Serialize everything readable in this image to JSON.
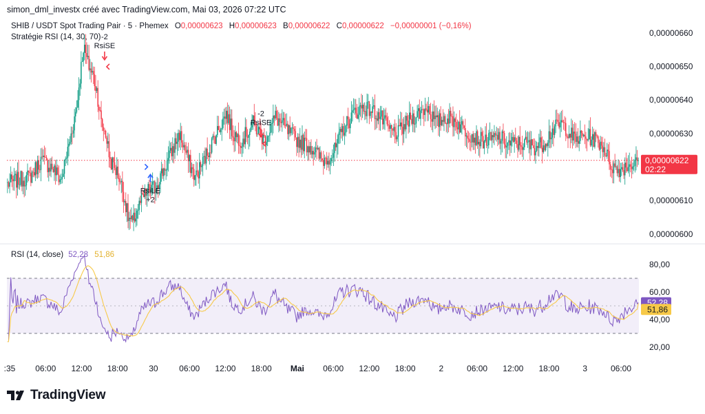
{
  "header": "simon_dml_investx créé avec TradingView.com, Mai 03, 2026 07:22 UTC",
  "legend": {
    "symbol": "SHIB / USDT Spot Trading Pair · 5 · Phemex",
    "open_label": "O",
    "open": "0,00000623",
    "high_label": "H",
    "high": "0,00000623",
    "low_label": "B",
    "low": "0,00000622",
    "close_label": "C",
    "close": "0,00000622",
    "change": "−0,00000001 (−0,16%)"
  },
  "strategy_label": "Stratégie RSI (14, 30, 70)",
  "rsi_legend": {
    "label": "RSI (14, close)",
    "value1": "52,28",
    "value2": "51,86"
  },
  "logo_text": "TradingView",
  "colors": {
    "up": "#089981",
    "down": "#f23645",
    "rsi": "#7e57c2",
    "rsi_ma": "#f7c948",
    "badge_price": "#f23645",
    "badge_rsi": "#7e57c2",
    "badge_rsi_ma": "#f7c948"
  },
  "chart_data": [
    {
      "type": "candlestick",
      "price_axis": [
        "0,00000660",
        "0,00000650",
        "0,00000640",
        "0,00000630",
        "0,00000620",
        "0,00000610",
        "0,00000600"
      ],
      "ylim": [
        5.975e-06,
        6.645e-06
      ],
      "last_price_label": "0,00000622",
      "countdown": "02:22",
      "last_price": 6.22e-06,
      "x_labels": [
        ":35",
        "06:00",
        "12:00",
        "18:00",
        "30",
        "06:00",
        "12:00",
        "18:00",
        "Mai",
        "06:00",
        "12:00",
        "18:00",
        "2",
        "06:00",
        "12:00",
        "18:00",
        "3",
        "06:00"
      ],
      "x_label_bold": "Mai",
      "close_path": [
        [
          0,
          6.15
        ],
        [
          8,
          6.16
        ],
        [
          20,
          6.17
        ],
        [
          30,
          6.22
        ],
        [
          40,
          6.2
        ],
        [
          48,
          6.16
        ],
        [
          56,
          6.28
        ],
        [
          62,
          6.38
        ],
        [
          68,
          6.56
        ],
        [
          72,
          6.51
        ],
        [
          76,
          6.48
        ],
        [
          80,
          6.43
        ],
        [
          84,
          6.33
        ],
        [
          88,
          6.3
        ],
        [
          92,
          6.22
        ],
        [
          96,
          6.2
        ],
        [
          100,
          6.17
        ],
        [
          104,
          6.12
        ],
        [
          108,
          6.05
        ],
        [
          112,
          6.03
        ],
        [
          116,
          6.07
        ],
        [
          120,
          6.1
        ],
        [
          126,
          6.13
        ],
        [
          132,
          6.14
        ],
        [
          138,
          6.18
        ],
        [
          144,
          6.22
        ],
        [
          150,
          6.27
        ],
        [
          154,
          6.3
        ],
        [
          158,
          6.26
        ],
        [
          162,
          6.22
        ],
        [
          168,
          6.17
        ],
        [
          176,
          6.22
        ],
        [
          184,
          6.28
        ],
        [
          190,
          6.32
        ],
        [
          196,
          6.36
        ],
        [
          202,
          6.3
        ],
        [
          210,
          6.28
        ],
        [
          220,
          6.33
        ],
        [
          230,
          6.28
        ],
        [
          240,
          6.35
        ],
        [
          250,
          6.31
        ],
        [
          260,
          6.28
        ],
        [
          272,
          6.26
        ],
        [
          282,
          6.22
        ],
        [
          292,
          6.24
        ],
        [
          300,
          6.31
        ],
        [
          310,
          6.36
        ],
        [
          318,
          6.38
        ],
        [
          326,
          6.37
        ],
        [
          334,
          6.35
        ],
        [
          342,
          6.31
        ],
        [
          350,
          6.3
        ],
        [
          360,
          6.34
        ],
        [
          368,
          6.36
        ],
        [
          376,
          6.38
        ],
        [
          384,
          6.33
        ],
        [
          392,
          6.35
        ],
        [
          400,
          6.34
        ],
        [
          410,
          6.31
        ],
        [
          418,
          6.29
        ],
        [
          424,
          6.28
        ],
        [
          432,
          6.28
        ],
        [
          440,
          6.29
        ],
        [
          448,
          6.27
        ],
        [
          456,
          6.27
        ],
        [
          464,
          6.27
        ],
        [
          472,
          6.26
        ],
        [
          480,
          6.27
        ],
        [
          488,
          6.31
        ],
        [
          496,
          6.33
        ],
        [
          502,
          6.31
        ],
        [
          508,
          6.28
        ],
        [
          514,
          6.29
        ],
        [
          520,
          6.29
        ],
        [
          528,
          6.28
        ],
        [
          534,
          6.26
        ],
        [
          540,
          6.21
        ],
        [
          546,
          6.19
        ],
        [
          552,
          6.2
        ],
        [
          558,
          6.21
        ],
        [
          564,
          6.21
        ]
      ],
      "signals": [
        {
          "label": "RsiSE",
          "qty": "-2",
          "x": 87,
          "price": 6.52,
          "side": "sell"
        },
        {
          "label": "RsiLE",
          "qty": "+2",
          "x": 128,
          "price": 6.18,
          "side": "buy"
        },
        {
          "label": "RsiSE",
          "qty": "-2",
          "x": 227,
          "price": 6.29,
          "side": "sell"
        }
      ]
    },
    {
      "type": "line",
      "title": "RSI (14, close)",
      "y_axis": [
        "80,00",
        "60,00",
        "40,00",
        "20,00"
      ],
      "ylim": [
        13,
        92
      ],
      "band": [
        30,
        70
      ],
      "midline": 50,
      "series": [
        {
          "name": "RSI",
          "last": 52.28
        },
        {
          "name": "MA",
          "last": 51.86
        }
      ]
    }
  ]
}
